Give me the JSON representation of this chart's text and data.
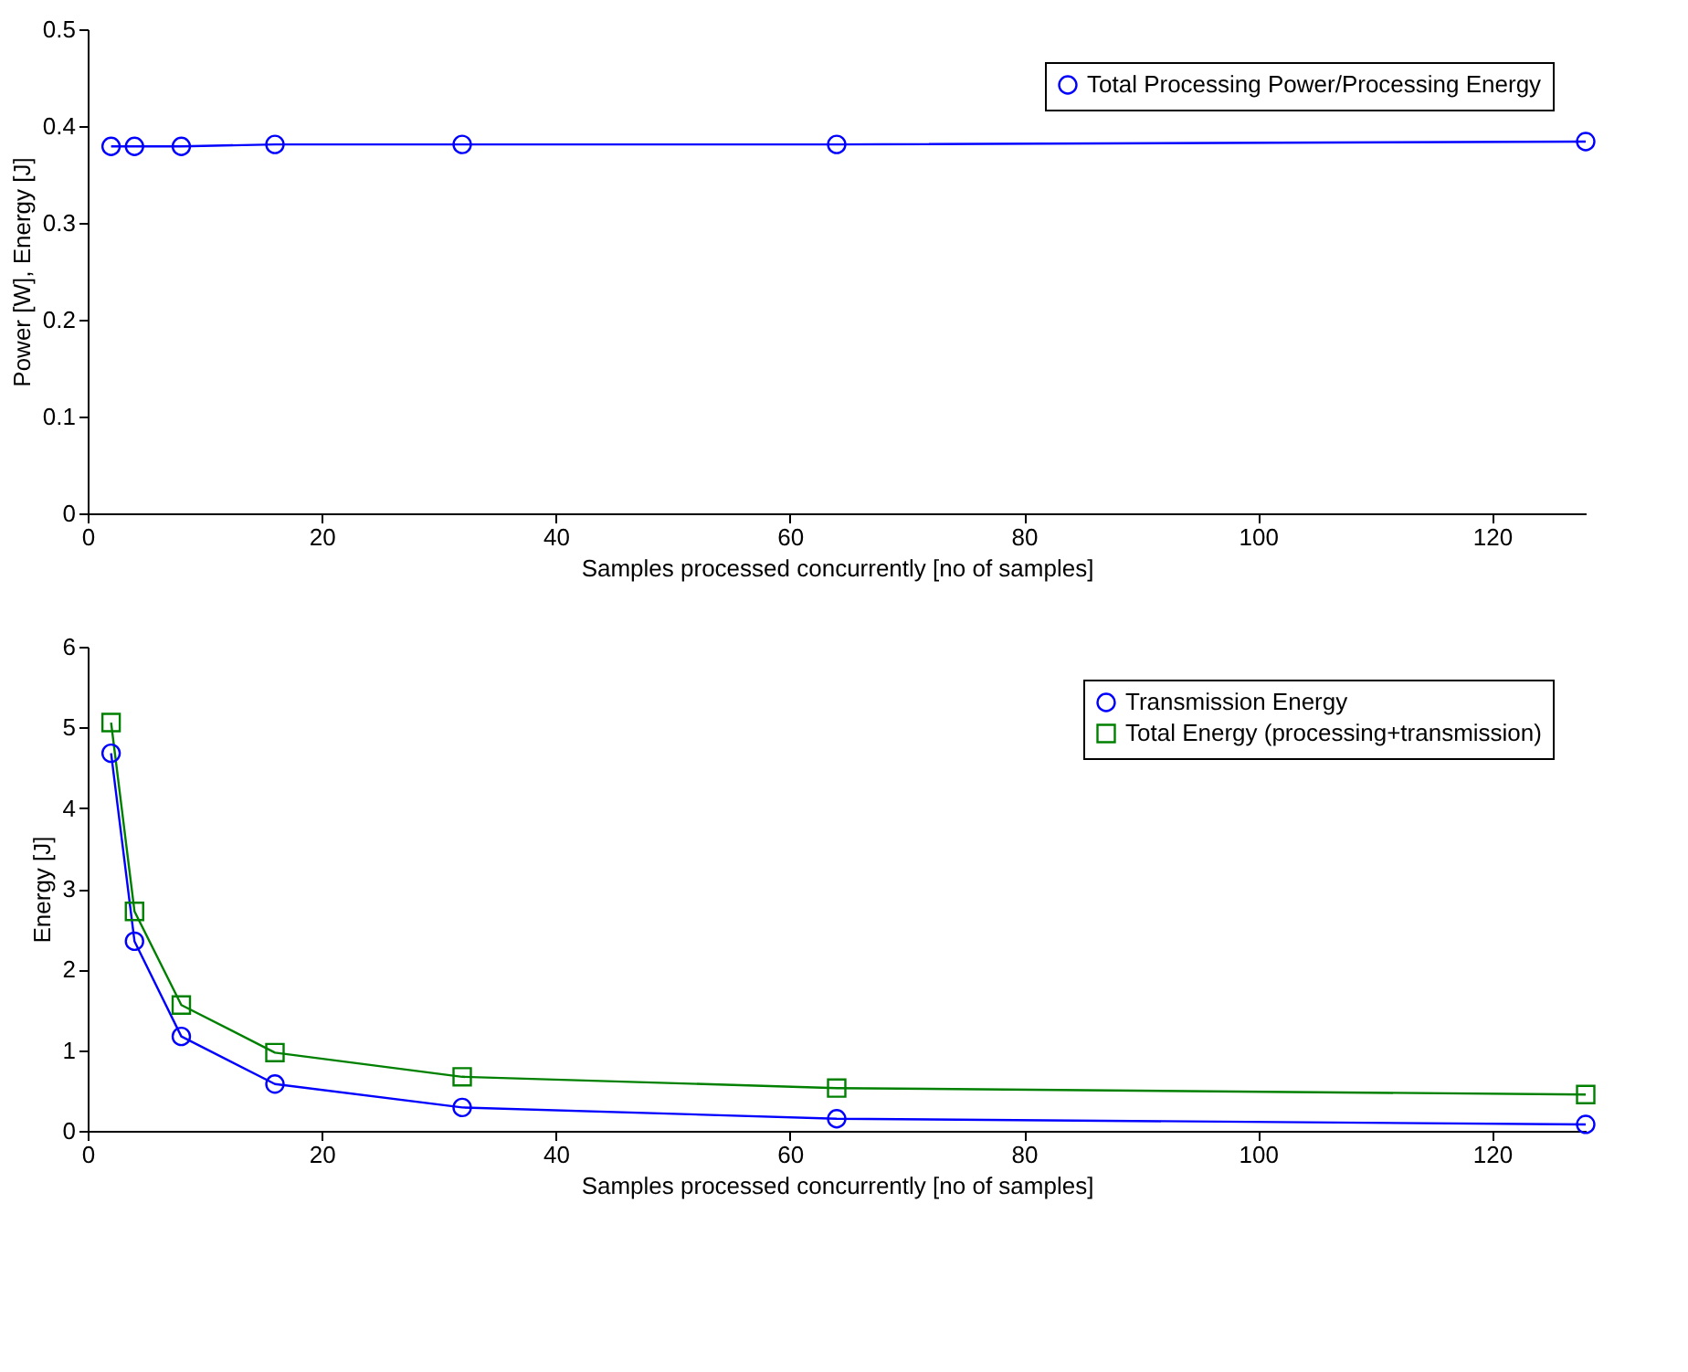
{
  "chart_data": [
    {
      "type": "line",
      "xlabel": "Samples processed concurrently [no of samples]",
      "ylabel": "Power [W], Energy [J]",
      "x": [
        2,
        4,
        8,
        16,
        32,
        64,
        128
      ],
      "xlim": [
        0,
        128
      ],
      "xticks": [
        0,
        20,
        40,
        60,
        80,
        100,
        120
      ],
      "ylim": [
        0,
        0.5
      ],
      "yticks": [
        0,
        0.1,
        0.2,
        0.3,
        0.4,
        0.5
      ],
      "grid": false,
      "legend": "top right",
      "series": [
        {
          "name": "Total Processing Power/Processing Energy",
          "color": "#0000ff",
          "marker": "circle",
          "values": [
            0.379,
            0.379,
            0.379,
            0.381,
            0.381,
            0.381,
            0.384
          ]
        }
      ]
    },
    {
      "type": "line",
      "xlabel": "Samples processed concurrently [no of samples]",
      "ylabel": "Energy [J]",
      "x": [
        2,
        4,
        8,
        16,
        32,
        64,
        128
      ],
      "xlim": [
        0,
        128
      ],
      "xticks": [
        0,
        20,
        40,
        60,
        80,
        100,
        120
      ],
      "ylim": [
        0,
        6
      ],
      "yticks": [
        0,
        1,
        2,
        3,
        4,
        5,
        6
      ],
      "grid": false,
      "legend": "top right",
      "series": [
        {
          "name": "Transmission Energy",
          "color": "#0000ff",
          "marker": "circle",
          "values": [
            4.68,
            2.35,
            1.17,
            0.58,
            0.29,
            0.15,
            0.08
          ]
        },
        {
          "name": "Total Energy (processing+transmission)",
          "color": "#008000",
          "marker": "square",
          "values": [
            5.06,
            2.72,
            1.56,
            0.97,
            0.67,
            0.53,
            0.45
          ]
        }
      ]
    }
  ]
}
